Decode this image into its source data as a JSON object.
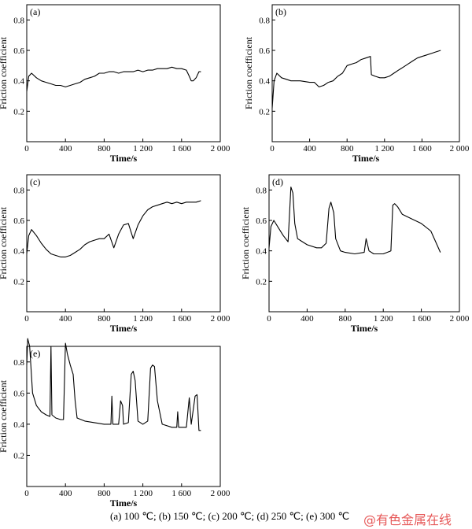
{
  "caption": "(a)  100  ℃;   (b) 150 ℃; (c) 200 ℃; (d) 250 ℃; (e) 300 ℃",
  "watermark": "@有色金属在线",
  "chart_data": [
    {
      "type": "line",
      "panel_label": "(a)",
      "xlabel": "Time/s",
      "ylabel": "Friction coefficient",
      "xlim": [
        0,
        2000
      ],
      "ylim": [
        0.0,
        0.9
      ],
      "xticks": [
        0,
        400,
        800,
        1200,
        1600,
        2000
      ],
      "xtick_labels": [
        "0",
        "400",
        "800",
        "1 200",
        "1 600",
        "2 000"
      ],
      "yticks": [
        0.2,
        0.4,
        0.6,
        0.8
      ],
      "ytick_labels": [
        "0.2",
        "0.4",
        "0.6",
        "0.8"
      ],
      "series": [
        {
          "x": [
            0,
            20,
            50,
            100,
            150,
            200,
            250,
            300,
            350,
            400,
            450,
            500,
            550,
            600,
            650,
            700,
            750,
            800,
            850,
            900,
            950,
            1000,
            1050,
            1100,
            1150,
            1200,
            1250,
            1300,
            1350,
            1400,
            1450,
            1500,
            1550,
            1600,
            1650,
            1680,
            1700,
            1720,
            1750,
            1780,
            1800
          ],
          "y": [
            0.33,
            0.43,
            0.45,
            0.42,
            0.4,
            0.39,
            0.38,
            0.37,
            0.37,
            0.36,
            0.37,
            0.38,
            0.39,
            0.41,
            0.42,
            0.43,
            0.45,
            0.45,
            0.46,
            0.46,
            0.45,
            0.46,
            0.46,
            0.46,
            0.47,
            0.46,
            0.47,
            0.47,
            0.48,
            0.48,
            0.48,
            0.49,
            0.48,
            0.48,
            0.47,
            0.43,
            0.4,
            0.4,
            0.42,
            0.46,
            0.46
          ]
        }
      ]
    },
    {
      "type": "line",
      "panel_label": "(b)",
      "xlabel": "Time/s",
      "ylabel": "Friction coefficient",
      "xlim": [
        0,
        2000
      ],
      "ylim": [
        0.0,
        0.9
      ],
      "xticks": [
        0,
        400,
        800,
        1200,
        1600,
        2000
      ],
      "xtick_labels": [
        "0",
        "400",
        "800",
        "1 200",
        "1 600",
        "2 000"
      ],
      "yticks": [
        0.2,
        0.4,
        0.6,
        0.8
      ],
      "ytick_labels": [
        "0.2",
        "0.4",
        "0.6",
        "0.8"
      ],
      "series": [
        {
          "x": [
            0,
            20,
            50,
            100,
            150,
            200,
            300,
            400,
            450,
            500,
            550,
            600,
            650,
            700,
            750,
            800,
            850,
            900,
            950,
            1000,
            1050,
            1060,
            1100,
            1150,
            1200,
            1250,
            1300,
            1350,
            1400,
            1450,
            1500,
            1550,
            1600,
            1650,
            1700,
            1750,
            1800
          ],
          "y": [
            0.22,
            0.4,
            0.45,
            0.42,
            0.41,
            0.4,
            0.4,
            0.39,
            0.39,
            0.36,
            0.37,
            0.39,
            0.4,
            0.43,
            0.45,
            0.5,
            0.51,
            0.52,
            0.54,
            0.55,
            0.56,
            0.44,
            0.43,
            0.42,
            0.42,
            0.43,
            0.45,
            0.47,
            0.49,
            0.51,
            0.53,
            0.55,
            0.56,
            0.57,
            0.58,
            0.59,
            0.6
          ]
        }
      ]
    },
    {
      "type": "line",
      "panel_label": "(c)",
      "xlabel": "Time/s",
      "ylabel": "Friction coefficient",
      "xlim": [
        0,
        2000
      ],
      "ylim": [
        0.0,
        0.9
      ],
      "xticks": [
        0,
        400,
        800,
        1200,
        1600,
        2000
      ],
      "xtick_labels": [
        "0",
        "400",
        "800",
        "1 200",
        "1 600",
        "2 000"
      ],
      "yticks": [
        0.2,
        0.4,
        0.6,
        0.8
      ],
      "ytick_labels": [
        "0.2",
        "0.4",
        "0.6",
        "0.8"
      ],
      "series": [
        {
          "x": [
            0,
            20,
            50,
            100,
            150,
            200,
            250,
            300,
            350,
            400,
            450,
            500,
            550,
            600,
            650,
            700,
            750,
            800,
            850,
            900,
            950,
            1000,
            1050,
            1100,
            1150,
            1200,
            1250,
            1300,
            1350,
            1400,
            1450,
            1500,
            1550,
            1600,
            1650,
            1700,
            1750,
            1800
          ],
          "y": [
            0.38,
            0.5,
            0.54,
            0.5,
            0.45,
            0.41,
            0.38,
            0.37,
            0.36,
            0.36,
            0.37,
            0.39,
            0.41,
            0.44,
            0.46,
            0.47,
            0.48,
            0.48,
            0.51,
            0.42,
            0.51,
            0.57,
            0.58,
            0.48,
            0.57,
            0.63,
            0.67,
            0.69,
            0.7,
            0.71,
            0.72,
            0.71,
            0.72,
            0.71,
            0.72,
            0.72,
            0.72,
            0.73
          ]
        }
      ]
    },
    {
      "type": "line",
      "panel_label": "(d)",
      "xlabel": "Time/s",
      "ylabel": "Friction coefficient",
      "xlim": [
        0,
        2000
      ],
      "ylim": [
        0.0,
        0.9
      ],
      "xticks": [
        0,
        400,
        800,
        1200,
        1600,
        2000
      ],
      "xtick_labels": [
        "0",
        "400",
        "800",
        "1 200",
        "1 600",
        "2 000"
      ],
      "yticks": [
        0.2,
        0.4,
        0.6,
        0.8
      ],
      "ytick_labels": [
        "0.2",
        "0.4",
        "0.6",
        "0.8"
      ],
      "series": [
        {
          "x": [
            0,
            20,
            50,
            100,
            150,
            200,
            230,
            250,
            270,
            300,
            400,
            500,
            550,
            600,
            630,
            650,
            680,
            700,
            750,
            800,
            900,
            1000,
            1020,
            1050,
            1100,
            1200,
            1280,
            1300,
            1320,
            1350,
            1400,
            1500,
            1600,
            1700,
            1750,
            1800
          ],
          "y": [
            0.42,
            0.56,
            0.6,
            0.55,
            0.5,
            0.46,
            0.82,
            0.78,
            0.58,
            0.48,
            0.44,
            0.42,
            0.42,
            0.45,
            0.68,
            0.72,
            0.65,
            0.48,
            0.4,
            0.39,
            0.38,
            0.39,
            0.48,
            0.4,
            0.38,
            0.38,
            0.4,
            0.7,
            0.71,
            0.69,
            0.64,
            0.61,
            0.58,
            0.53,
            0.46,
            0.39
          ]
        }
      ]
    },
    {
      "type": "line",
      "panel_label": "(e)",
      "xlabel": "Time/s",
      "ylabel": "Friction coefficient",
      "xlim": [
        0,
        2000
      ],
      "ylim": [
        0.0,
        0.9
      ],
      "xticks": [
        0,
        400,
        800,
        1200,
        1600,
        2000
      ],
      "xtick_labels": [
        "0",
        "400",
        "800",
        "1 200",
        "1 600",
        "2 000"
      ],
      "yticks": [
        0.2,
        0.4,
        0.6,
        0.8
      ],
      "ytick_labels": [
        "0.2",
        "0.4",
        "0.6",
        "0.8"
      ],
      "series": [
        {
          "x": [
            0,
            10,
            30,
            60,
            100,
            150,
            200,
            240,
            250,
            260,
            300,
            350,
            380,
            400,
            420,
            450,
            480,
            500,
            520,
            600,
            700,
            800,
            870,
            880,
            890,
            950,
            970,
            990,
            1000,
            1050,
            1080,
            1100,
            1120,
            1150,
            1200,
            1250,
            1280,
            1300,
            1320,
            1350,
            1400,
            1500,
            1550,
            1560,
            1570,
            1650,
            1680,
            1700,
            1740,
            1760,
            1780,
            1800
          ],
          "y": [
            0.78,
            0.95,
            0.9,
            0.6,
            0.52,
            0.48,
            0.46,
            0.45,
            0.9,
            0.46,
            0.44,
            0.43,
            0.43,
            0.92,
            0.85,
            0.78,
            0.72,
            0.55,
            0.44,
            0.42,
            0.41,
            0.4,
            0.4,
            0.58,
            0.4,
            0.4,
            0.55,
            0.52,
            0.4,
            0.41,
            0.72,
            0.74,
            0.68,
            0.42,
            0.4,
            0.42,
            0.76,
            0.78,
            0.77,
            0.55,
            0.4,
            0.38,
            0.38,
            0.48,
            0.38,
            0.38,
            0.57,
            0.4,
            0.58,
            0.59,
            0.36,
            0.36
          ]
        }
      ]
    }
  ]
}
